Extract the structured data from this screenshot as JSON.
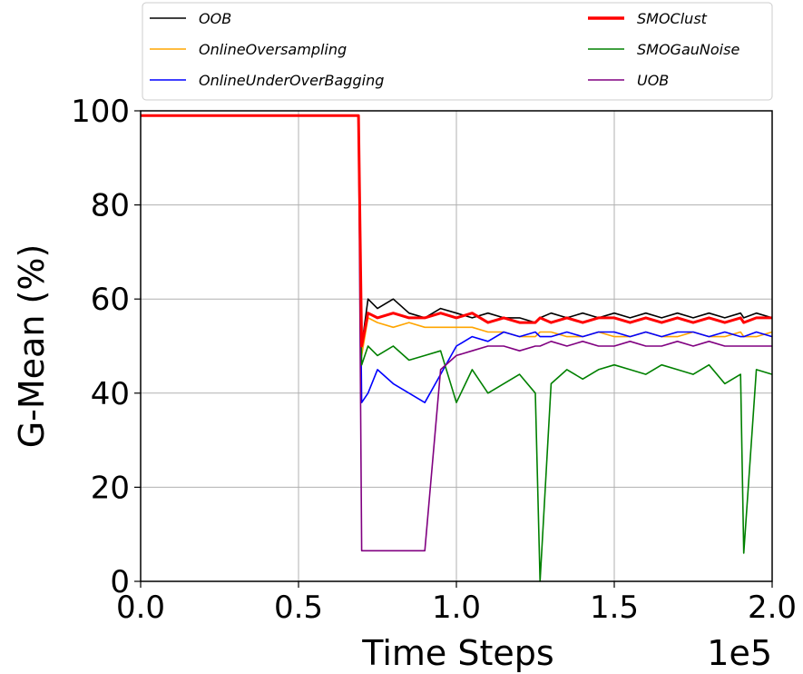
{
  "chart_data": {
    "type": "line",
    "title": "",
    "xlabel": "Time Steps",
    "ylabel": "G-Mean (%)",
    "x_offset_text": "1e5",
    "xlim": [
      0,
      200000
    ],
    "ylim": [
      0,
      100
    ],
    "xticks": [
      0,
      50000,
      100000,
      150000,
      200000
    ],
    "xtick_labels": [
      "0.0",
      "0.5",
      "1.0",
      "1.5",
      "2.0"
    ],
    "yticks": [
      0,
      20,
      40,
      60,
      80,
      100
    ],
    "ytick_labels": [
      "0",
      "20",
      "40",
      "60",
      "80",
      "100"
    ],
    "grid": true,
    "legend_placement": "top, above plot, two columns",
    "x": [
      0,
      10000,
      20000,
      30000,
      40000,
      50000,
      60000,
      69000,
      70000,
      72000,
      75000,
      80000,
      85000,
      90000,
      95000,
      100000,
      105000,
      110000,
      115000,
      120000,
      125000,
      126500,
      130000,
      135000,
      140000,
      145000,
      150000,
      155000,
      160000,
      165000,
      170000,
      175000,
      180000,
      185000,
      190000,
      191000,
      195000,
      200000
    ],
    "series": [
      {
        "name": "OOB",
        "color": "#000000",
        "values": [
          99,
          99,
          99,
          99,
          99,
          99,
          99,
          99,
          50,
          60,
          58,
          60,
          57,
          56,
          58,
          57,
          56,
          57,
          56,
          56,
          55,
          56,
          57,
          56,
          57,
          56,
          57,
          56,
          57,
          56,
          57,
          56,
          57,
          56,
          57,
          56,
          57,
          56
        ]
      },
      {
        "name": "OnlineOversampling",
        "color": "#ffa500",
        "values": [
          99,
          99,
          99,
          99,
          99,
          99,
          99,
          99,
          48,
          56,
          55,
          54,
          55,
          54,
          54,
          54,
          54,
          53,
          53,
          52,
          52,
          53,
          53,
          52,
          52,
          53,
          52,
          52,
          53,
          52,
          52,
          53,
          52,
          52,
          53,
          52,
          52,
          53
        ]
      },
      {
        "name": "OnlineUnderOverBagging",
        "color": "#0000ff",
        "values": [
          99,
          99,
          99,
          99,
          99,
          99,
          99,
          99,
          38,
          40,
          45,
          42,
          40,
          38,
          44,
          50,
          52,
          51,
          53,
          52,
          53,
          52,
          52,
          53,
          52,
          53,
          53,
          52,
          53,
          52,
          53,
          53,
          52,
          53,
          52,
          52,
          53,
          52
        ]
      },
      {
        "name": "SMOClust",
        "color": "#ff0000",
        "values": [
          99,
          99,
          99,
          99,
          99,
          99,
          99,
          99,
          50,
          57,
          56,
          57,
          56,
          56,
          57,
          56,
          57,
          55,
          56,
          55,
          55,
          56,
          55,
          56,
          55,
          56,
          56,
          55,
          56,
          55,
          56,
          55,
          56,
          55,
          56,
          55,
          56,
          56
        ]
      },
      {
        "name": "SMOGauNoise",
        "color": "#008000",
        "values": [
          99,
          99,
          99,
          99,
          99,
          99,
          99,
          99,
          46,
          50,
          48,
          50,
          47,
          48,
          49,
          38,
          45,
          40,
          42,
          44,
          40,
          0,
          42,
          45,
          43,
          45,
          46,
          45,
          44,
          46,
          45,
          44,
          46,
          42,
          44,
          6,
          45,
          44
        ]
      },
      {
        "name": "UOB",
        "color": "#800080",
        "values": [
          99,
          99,
          99,
          99,
          99,
          99,
          99,
          99,
          6.5,
          6.5,
          6.5,
          6.5,
          6.5,
          6.5,
          45,
          48,
          49,
          50,
          50,
          49,
          50,
          50,
          51,
          50,
          51,
          50,
          50,
          51,
          50,
          50,
          51,
          50,
          51,
          50,
          50,
          50,
          50,
          50
        ]
      }
    ]
  }
}
